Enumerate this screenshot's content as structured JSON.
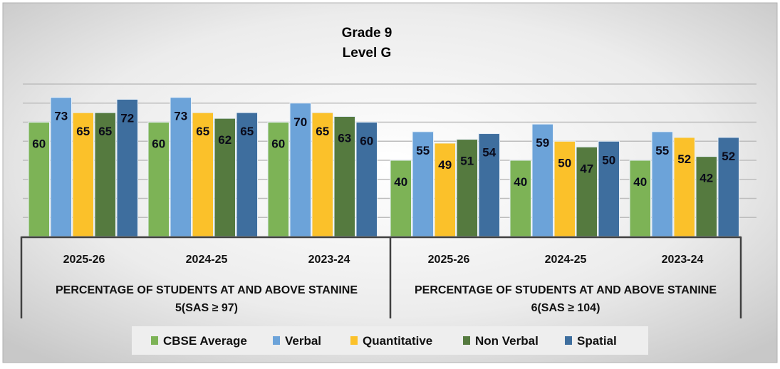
{
  "chart_data": {
    "type": "bar",
    "title": [
      "Grade 9",
      "Level G"
    ],
    "outer_categories": [
      {
        "label": [
          "PERCENTAGE OF STUDENTS AT AND ABOVE STANINE",
          "5(SAS ≥ 97)"
        ],
        "years": [
          "2025-26",
          "2024-25",
          "2023-24"
        ]
      },
      {
        "label": [
          "PERCENTAGE OF STUDENTS AT AND ABOVE STANINE",
          "6(SAS ≥ 104)"
        ],
        "years": [
          "2025-26",
          "2024-25",
          "2023-24"
        ]
      }
    ],
    "series": [
      {
        "name": "CBSE Average",
        "color": "#7DB356",
        "values": [
          60,
          60,
          60,
          40,
          40,
          40
        ]
      },
      {
        "name": "Verbal",
        "color": "#6CA3D9",
        "values": [
          73,
          73,
          70,
          55,
          59,
          55
        ]
      },
      {
        "name": "Quantitative",
        "color": "#FBC12A",
        "values": [
          65,
          65,
          65,
          49,
          50,
          52
        ]
      },
      {
        "name": "Non Verbal",
        "color": "#557A3F",
        "values": [
          65,
          62,
          63,
          51,
          47,
          42
        ]
      },
      {
        "name": "Spatial",
        "color": "#3E6E9E",
        "values": [
          72,
          65,
          60,
          54,
          50,
          52
        ]
      }
    ],
    "ylim": [
      0,
      80
    ],
    "grid": true,
    "grid_step": 10,
    "data_labels": true,
    "legend_position": "bottom"
  }
}
